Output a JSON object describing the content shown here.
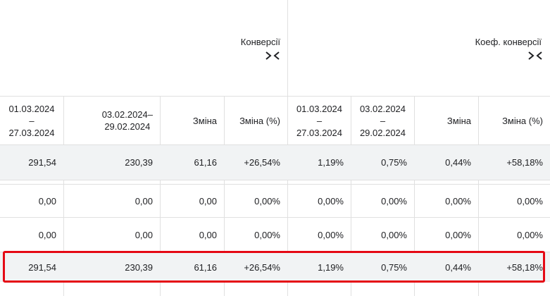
{
  "groups": [
    {
      "title": "Конверсії",
      "icon": "collapse-arrows-icon"
    },
    {
      "title": "Коеф. конверсії",
      "icon": "collapse-arrows-icon"
    }
  ],
  "columns": [
    {
      "line1": "01.03.2024",
      "line2": "–",
      "line3": "27.03.2024"
    },
    {
      "line1": "03.02.2024–",
      "line2": "29.02.2024"
    },
    {
      "label": "Зміна"
    },
    {
      "label": "Зміна (%)"
    },
    {
      "line1": "01.03.2024",
      "line2": "–",
      "line3": "27.03.2024"
    },
    {
      "line1": "03.02.2024",
      "line2": "–",
      "line3": "29.02.2024"
    },
    {
      "label": "Зміна"
    },
    {
      "label": "Зміна (%)"
    }
  ],
  "rows": [
    [
      "291,54",
      "230,39",
      "61,16",
      "+26,54%",
      "1,19%",
      "0,75%",
      "0,44%",
      "+58,18%"
    ],
    [
      "0,00",
      "0,00",
      "0,00",
      "0,00%",
      "0,00%",
      "0,00%",
      "0,00%",
      "0,00%"
    ],
    [
      "0,00",
      "0,00",
      "0,00",
      "0,00%",
      "0,00%",
      "0,00%",
      "0,00%",
      "0,00%"
    ],
    [
      "291,54",
      "230,39",
      "61,16",
      "+26,54%",
      "1,19%",
      "0,75%",
      "0,44%",
      "+58,18%"
    ]
  ],
  "colors": {
    "highlight": "#e50914",
    "row_shade": "#f1f3f4",
    "grid": "#e0e0e0"
  }
}
